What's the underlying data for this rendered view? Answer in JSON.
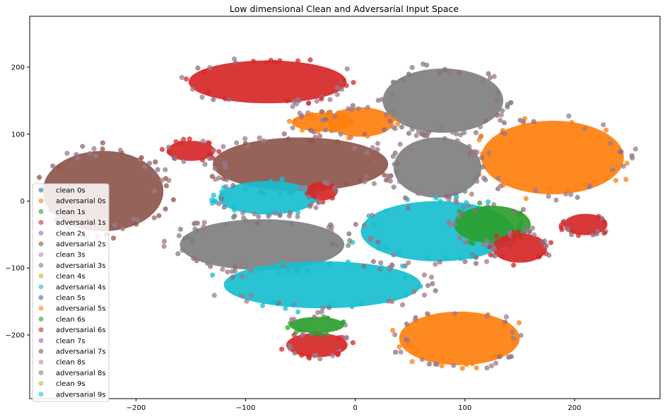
{
  "chart_data": {
    "type": "scatter",
    "title": "Low dimensional Clean and Adversarial Input Space",
    "xlabel": "",
    "ylabel": "",
    "xlim": [
      -297,
      278
    ],
    "ylim": [
      -295,
      276
    ],
    "x_ticks": [
      -200,
      -100,
      0,
      100,
      200
    ],
    "y_ticks": [
      200,
      100,
      0,
      -100,
      -200
    ],
    "x_tick_labels": [
      "−200",
      "−100",
      "0",
      "100",
      "200"
    ],
    "y_tick_labels": [
      "200",
      "100",
      "0",
      "−100",
      "−200"
    ],
    "grid": false,
    "legend_placement": "lower-left",
    "palette": [
      "#1f77b4",
      "#ff7f0e",
      "#2ca02c",
      "#d62728",
      "#9467bd",
      "#8c564b",
      "#e377c2",
      "#7f7f7f",
      "#bcbd22",
      "#17becf"
    ],
    "series": [
      {
        "name": "clean 0s",
        "color": "#1f77b4"
      },
      {
        "name": "adversarial 0s",
        "color": "#ff7f0e"
      },
      {
        "name": "clean 1s",
        "color": "#2ca02c"
      },
      {
        "name": "adversarial 1s",
        "color": "#d62728"
      },
      {
        "name": "clean 2s",
        "color": "#9467bd"
      },
      {
        "name": "adversarial 2s",
        "color": "#8c564b"
      },
      {
        "name": "clean 3s",
        "color": "#e377c2"
      },
      {
        "name": "adversarial 3s",
        "color": "#7f7f7f"
      },
      {
        "name": "clean 4s",
        "color": "#bcbd22"
      },
      {
        "name": "adversarial 4s",
        "color": "#17becf"
      },
      {
        "name": "clean 5s",
        "color": "#1f77b4"
      },
      {
        "name": "adversarial 5s",
        "color": "#ff7f0e"
      },
      {
        "name": "clean 6s",
        "color": "#2ca02c"
      },
      {
        "name": "adversarial 6s",
        "color": "#d62728"
      },
      {
        "name": "clean 7s",
        "color": "#9467bd"
      },
      {
        "name": "adversarial 7s",
        "color": "#8c564b"
      },
      {
        "name": "clean 8s",
        "color": "#e377c2"
      },
      {
        "name": "adversarial 8s",
        "color": "#7f7f7f"
      },
      {
        "name": "clean 9s",
        "color": "#bcbd22"
      },
      {
        "name": "adversarial 9s",
        "color": "#17becf"
      }
    ],
    "clusters": [
      {
        "cx": -80,
        "cy": 178,
        "rx": 72,
        "ry": 32,
        "color": "#d62728",
        "n": 40
      },
      {
        "cx": -30,
        "cy": 118,
        "rx": 28,
        "ry": 14,
        "color": "#ff7f0e",
        "n": 25
      },
      {
        "cx": 80,
        "cy": 150,
        "rx": 55,
        "ry": 48,
        "color": "#7f7f7f",
        "n": 50
      },
      {
        "cx": 5,
        "cy": 118,
        "rx": 30,
        "ry": 22,
        "color": "#ff7f0e",
        "n": 25
      },
      {
        "cx": 180,
        "cy": 65,
        "rx": 65,
        "ry": 55,
        "color": "#ff7f0e",
        "n": 50
      },
      {
        "cx": -150,
        "cy": 75,
        "rx": 22,
        "ry": 15,
        "color": "#d62728",
        "n": 20
      },
      {
        "cx": -50,
        "cy": 55,
        "rx": 80,
        "ry": 40,
        "color": "#8c564b",
        "n": 50
      },
      {
        "cx": -230,
        "cy": 15,
        "rx": 55,
        "ry": 60,
        "color": "#8c564b",
        "n": 50
      },
      {
        "cx": -80,
        "cy": 5,
        "rx": 45,
        "ry": 25,
        "color": "#17becf",
        "n": 35
      },
      {
        "cx": 75,
        "cy": 50,
        "rx": 40,
        "ry": 45,
        "color": "#7f7f7f",
        "n": 40
      },
      {
        "cx": 75,
        "cy": -45,
        "rx": 70,
        "ry": 45,
        "color": "#17becf",
        "n": 55
      },
      {
        "cx": -85,
        "cy": -65,
        "rx": 75,
        "ry": 38,
        "color": "#7f7f7f",
        "n": 55
      },
      {
        "cx": -30,
        "cy": -125,
        "rx": 90,
        "ry": 35,
        "color": "#17becf",
        "n": 55
      },
      {
        "cx": 125,
        "cy": -35,
        "rx": 35,
        "ry": 28,
        "color": "#2ca02c",
        "n": 25
      },
      {
        "cx": 150,
        "cy": -70,
        "rx": 25,
        "ry": 22,
        "color": "#d62728",
        "n": 25
      },
      {
        "cx": 210,
        "cy": -35,
        "rx": 20,
        "ry": 16,
        "color": "#d62728",
        "n": 20
      },
      {
        "cx": 95,
        "cy": -205,
        "rx": 55,
        "ry": 40,
        "color": "#ff7f0e",
        "n": 45
      },
      {
        "cx": -35,
        "cy": -215,
        "rx": 28,
        "ry": 18,
        "color": "#d62728",
        "n": 25
      },
      {
        "cx": -35,
        "cy": -185,
        "rx": 25,
        "ry": 12,
        "color": "#2ca02c",
        "n": 18
      },
      {
        "cx": -30,
        "cy": 15,
        "rx": 14,
        "ry": 14,
        "color": "#d62728",
        "n": 12
      }
    ]
  }
}
